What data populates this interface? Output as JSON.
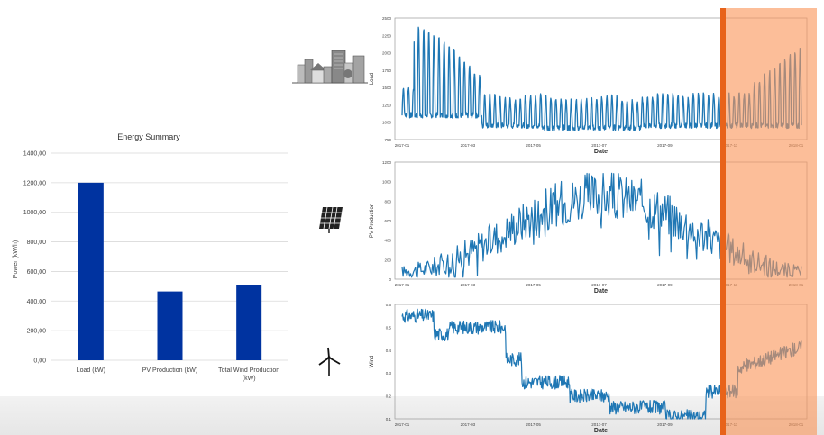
{
  "summary": {
    "chart_data": {
      "type": "bar",
      "title": "Energy Summary",
      "ylabel": "Power (kW/h)",
      "xlabel": "",
      "categories": [
        "Load (kW)",
        "PV Production (kW)",
        "Total Wind Production (kW)"
      ],
      "values": [
        1200,
        465,
        510
      ],
      "ylim": [
        0,
        1400
      ],
      "yticks": [
        "0,00",
        "200,00",
        "400,00",
        "600,00",
        "800,00",
        "1000,00",
        "1200,00",
        "1400,00"
      ],
      "grid": true,
      "color": "#0033a0"
    }
  },
  "load": {
    "chart_data": {
      "type": "line",
      "ylabel": "Load",
      "xlabel": "Date",
      "ylim": [
        750,
        2500
      ],
      "yticks": [
        "750",
        "1000",
        "1250",
        "1500",
        "1750",
        "2000",
        "2250",
        "2500"
      ],
      "xticks": [
        "2017-01",
        "2017-03",
        "2017-05",
        "2017-07",
        "2017-09",
        "2017-11",
        "2018-01"
      ],
      "color": "#1f77b4"
    }
  },
  "pv": {
    "chart_data": {
      "type": "line",
      "ylabel": "PV Production",
      "xlabel": "Date",
      "ylim": [
        0,
        1200
      ],
      "yticks": [
        "0",
        "200",
        "400",
        "600",
        "800",
        "1000",
        "1200"
      ],
      "xticks": [
        "2017-01",
        "2017-03",
        "2017-05",
        "2017-07",
        "2017-09",
        "2017-11",
        "2018-01"
      ],
      "color": "#1f77b4"
    }
  },
  "wind": {
    "chart_data": {
      "type": "line",
      "ylabel": "Wind",
      "xlabel": "Date",
      "ylim": [
        0.1,
        0.6
      ],
      "yticks": [
        "0.1",
        "0.2",
        "0.3",
        "0.4",
        "0.5",
        "0.6"
      ],
      "xticks": [
        "2017-01",
        "2017-03",
        "2017-05",
        "2017-07",
        "2017-09",
        "2017-11",
        "2018-01"
      ],
      "color": "#1f77b4"
    }
  },
  "highlight": {
    "color": "#f5a070",
    "line_color": "#e8631a"
  },
  "icons": {
    "city": "city-buildings-icon",
    "solar": "solar-panel-icon",
    "wind": "wind-turbine-icon"
  }
}
